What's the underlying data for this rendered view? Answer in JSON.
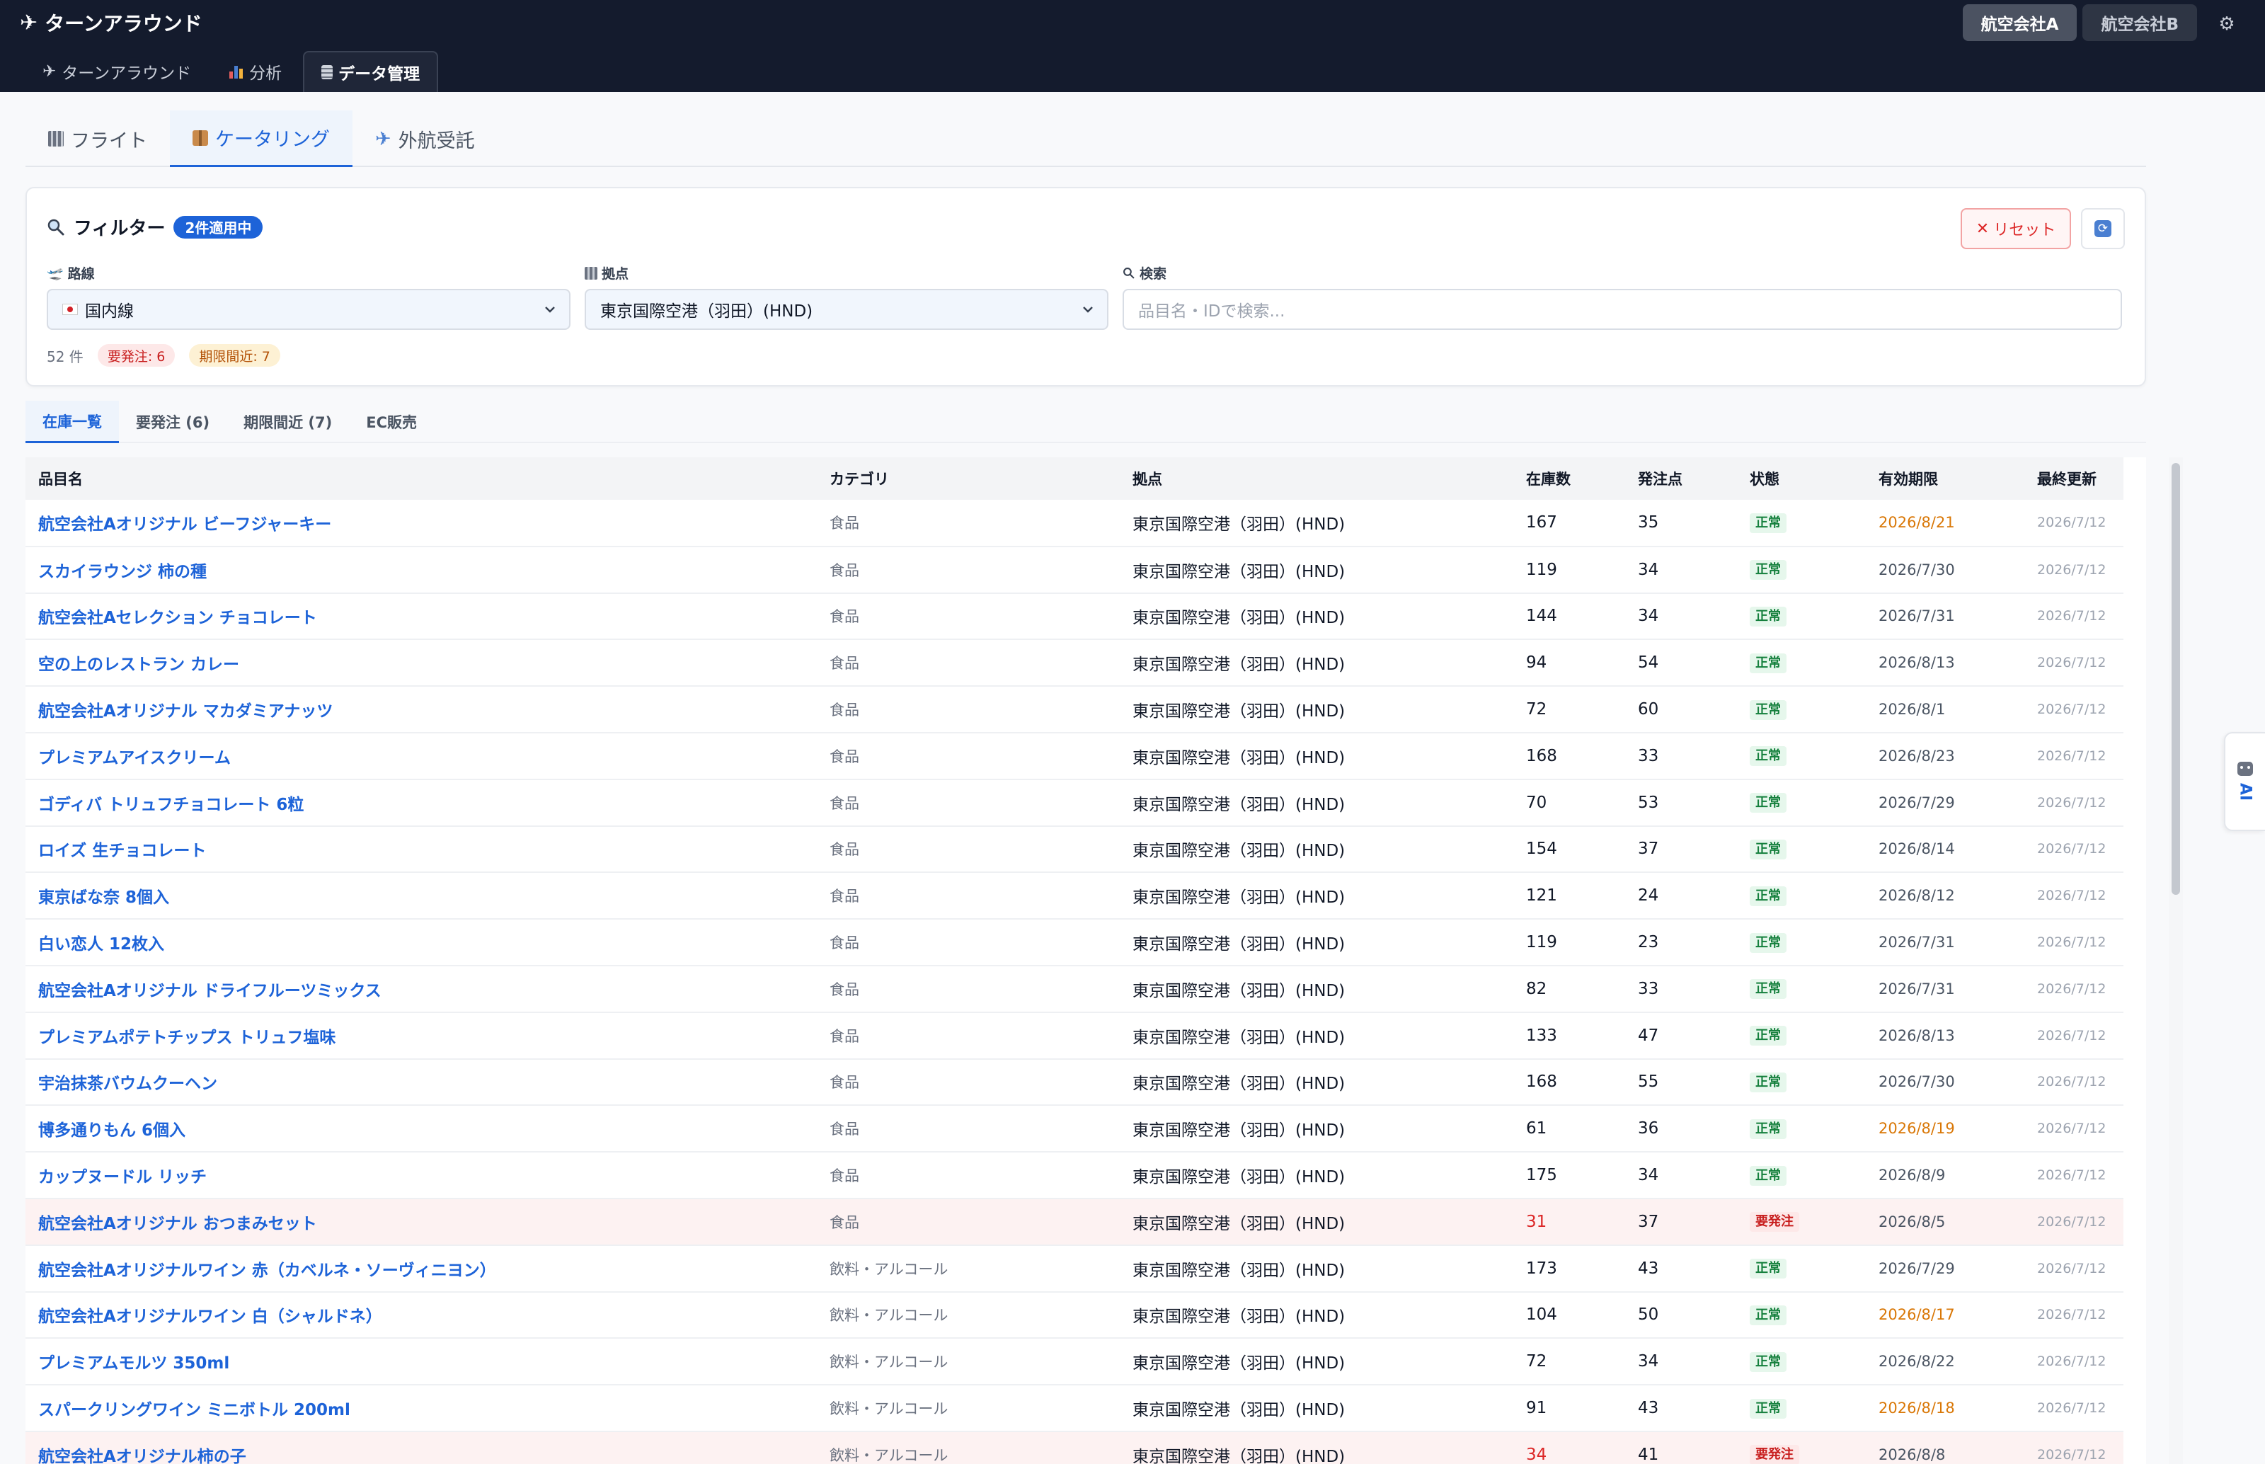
{
  "header": {
    "app_title": "ターンアラウンド",
    "airlines": [
      "航空会社A",
      "航空会社B"
    ],
    "active_airline": "航空会社A",
    "tabs": [
      {
        "label": "ターンアラウンド",
        "icon": "plane-icon"
      },
      {
        "label": "分析",
        "icon": "chart-icon"
      },
      {
        "label": "データ管理",
        "icon": "database-icon"
      }
    ]
  },
  "subtabs": [
    {
      "label": "フライト",
      "icon": "building-icon"
    },
    {
      "label": "ケータリング",
      "icon": "package-icon"
    },
    {
      "label": "外航受託",
      "icon": "airplane-icon"
    }
  ],
  "filter": {
    "title": "フィルター",
    "applied_badge": "2件適用中",
    "reset_label": "リセット",
    "route_label": "路線",
    "route_value": "国内線",
    "base_label": "拠点",
    "base_value": "東京国際空港（羽田）(HND)",
    "search_label": "検索",
    "search_placeholder": "品目名・IDで検索...",
    "count": "52 件",
    "reorder_pill": "要発注: 6",
    "expiry_pill": "期限間近: 7"
  },
  "view_tabs": [
    "在庫一覧",
    "要発注 (6)",
    "期限間近 (7)",
    "EC販売"
  ],
  "table": {
    "columns": [
      "品目名",
      "カテゴリ",
      "拠点",
      "在庫数",
      "発注点",
      "状態",
      "有効期限",
      "最終更新"
    ],
    "rows": [
      {
        "name": "航空会社Aオリジナル ビーフジャーキー",
        "category": "食品",
        "base": "東京国際空港（羽田）(HND)",
        "stock": "167",
        "reorder": "35",
        "status": "正常",
        "expiry": "2026/8/21",
        "updated": "2026/7/12"
      },
      {
        "name": "スカイラウンジ 柿の種",
        "category": "食品",
        "base": "東京国際空港（羽田）(HND)",
        "stock": "119",
        "reorder": "34",
        "status": "正常",
        "expiry": "2026/7/30",
        "updated": "2026/7/12"
      },
      {
        "name": "航空会社Aセレクション チョコレート",
        "category": "食品",
        "base": "東京国際空港（羽田）(HND)",
        "stock": "144",
        "reorder": "34",
        "status": "正常",
        "expiry": "2026/7/31",
        "updated": "2026/7/12"
      },
      {
        "name": "空の上のレストラン カレー",
        "category": "食品",
        "base": "東京国際空港（羽田）(HND)",
        "stock": "94",
        "reorder": "54",
        "status": "正常",
        "expiry": "2026/8/13",
        "updated": "2026/7/12"
      },
      {
        "name": "航空会社Aオリジナル マカダミアナッツ",
        "category": "食品",
        "base": "東京国際空港（羽田）(HND)",
        "stock": "72",
        "reorder": "60",
        "status": "正常",
        "expiry": "2026/8/1",
        "updated": "2026/7/12"
      },
      {
        "name": "プレミアムアイスクリーム",
        "category": "食品",
        "base": "東京国際空港（羽田）(HND)",
        "stock": "168",
        "reorder": "33",
        "status": "正常",
        "expiry": "2026/8/23",
        "updated": "2026/7/12"
      },
      {
        "name": "ゴディバ トリュフチョコレート 6粒",
        "category": "食品",
        "base": "東京国際空港（羽田）(HND)",
        "stock": "70",
        "reorder": "53",
        "status": "正常",
        "expiry": "2026/7/29",
        "updated": "2026/7/12"
      },
      {
        "name": "ロイズ 生チョコレート",
        "category": "食品",
        "base": "東京国際空港（羽田）(HND)",
        "stock": "154",
        "reorder": "37",
        "status": "正常",
        "expiry": "2026/8/14",
        "updated": "2026/7/12"
      },
      {
        "name": "東京ばな奈 8個入",
        "category": "食品",
        "base": "東京国際空港（羽田）(HND)",
        "stock": "121",
        "reorder": "24",
        "status": "正常",
        "expiry": "2026/8/12",
        "updated": "2026/7/12"
      },
      {
        "name": "白い恋人 12枚入",
        "category": "食品",
        "base": "東京国際空港（羽田）(HND)",
        "stock": "119",
        "reorder": "23",
        "status": "正常",
        "expiry": "2026/7/31",
        "updated": "2026/7/12"
      },
      {
        "name": "航空会社Aオリジナル ドライフルーツミックス",
        "category": "食品",
        "base": "東京国際空港（羽田）(HND)",
        "stock": "82",
        "reorder": "33",
        "status": "正常",
        "expiry": "2026/7/31",
        "updated": "2026/7/12"
      },
      {
        "name": "プレミアムポテトチップス トリュフ塩味",
        "category": "食品",
        "base": "東京国際空港（羽田）(HND)",
        "stock": "133",
        "reorder": "47",
        "status": "正常",
        "expiry": "2026/8/13",
        "updated": "2026/7/12"
      },
      {
        "name": "宇治抹茶バウムクーヘン",
        "category": "食品",
        "base": "東京国際空港（羽田）(HND)",
        "stock": "168",
        "reorder": "55",
        "status": "正常",
        "expiry": "2026/7/30",
        "updated": "2026/7/12"
      },
      {
        "name": "博多通りもん 6個入",
        "category": "食品",
        "base": "東京国際空港（羽田）(HND)",
        "stock": "61",
        "reorder": "36",
        "status": "正常",
        "expiry": "2026/8/19",
        "updated": "2026/7/12"
      },
      {
        "name": "カップヌードル リッチ",
        "category": "食品",
        "base": "東京国際空港（羽田）(HND)",
        "stock": "175",
        "reorder": "34",
        "status": "正常",
        "expiry": "2026/8/9",
        "updated": "2026/7/12"
      },
      {
        "name": "航空会社Aオリジナル おつまみセット",
        "category": "食品",
        "base": "東京国際空港（羽田）(HND)",
        "stock": "31",
        "reorder": "37",
        "status": "要発注",
        "expiry": "2026/8/5",
        "updated": "2026/7/12"
      },
      {
        "name": "航空会社Aオリジナルワイン 赤（カベルネ・ソーヴィニヨン）",
        "category": "飲料・アルコール",
        "base": "東京国際空港（羽田）(HND)",
        "stock": "173",
        "reorder": "43",
        "status": "正常",
        "expiry": "2026/7/29",
        "updated": "2026/7/12"
      },
      {
        "name": "航空会社Aオリジナルワイン 白（シャルドネ）",
        "category": "飲料・アルコール",
        "base": "東京国際空港（羽田）(HND)",
        "stock": "104",
        "reorder": "50",
        "status": "正常",
        "expiry": "2026/8/17",
        "updated": "2026/7/12"
      },
      {
        "name": "プレミアムモルツ 350ml",
        "category": "飲料・アルコール",
        "base": "東京国際空港（羽田）(HND)",
        "stock": "72",
        "reorder": "34",
        "status": "正常",
        "expiry": "2026/8/22",
        "updated": "2026/7/12"
      },
      {
        "name": "スパークリングワイン ミニボトル 200ml",
        "category": "飲料・アルコール",
        "base": "東京国際空港（羽田）(HND)",
        "stock": "91",
        "reorder": "43",
        "status": "正常",
        "expiry": "2026/8/18",
        "updated": "2026/7/12"
      },
      {
        "name": "航空会社Aオリジナル柿の子",
        "category": "飲料・アルコール",
        "base": "東京国際空港（羽田）(HND)",
        "stock": "34",
        "reorder": "41",
        "status": "要発注",
        "expiry": "2026/8/8",
        "updated": "2026/7/12"
      }
    ]
  },
  "ai_panel": {
    "label": "AI"
  },
  "colors": {
    "accent": "#1d63d8",
    "header_bg": "#141b2d",
    "danger": "#dc2626",
    "warning": "#d97706",
    "success": "#15803d"
  }
}
